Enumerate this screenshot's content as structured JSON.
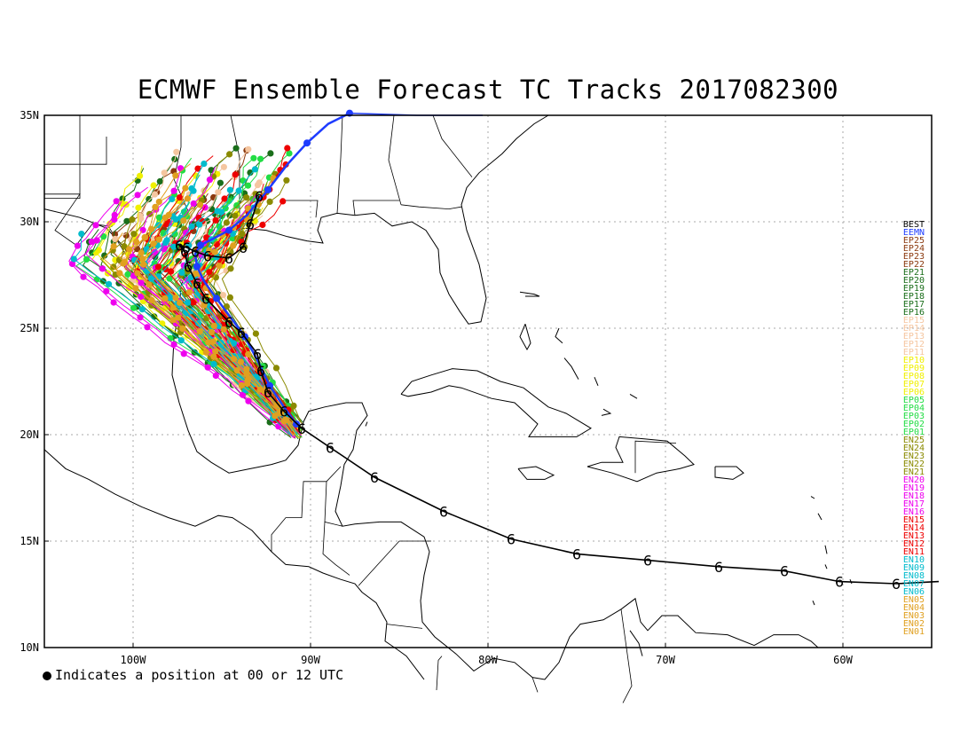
{
  "title": "ECMWF Ensemble Forecast TC Tracks 2017082300",
  "footnote": "Indicates a position at 00 or 12 UTC",
  "map": {
    "lon_range": [
      -105,
      -55
    ],
    "lat_range": [
      10,
      35
    ],
    "x_ticks": [
      {
        "lon": -100,
        "label": "100W"
      },
      {
        "lon": -90,
        "label": "90W"
      },
      {
        "lon": -80,
        "label": "80W"
      },
      {
        "lon": -70,
        "label": "70W"
      },
      {
        "lon": -60,
        "label": "60W"
      }
    ],
    "y_ticks": [
      {
        "lat": 35,
        "label": "35N"
      },
      {
        "lat": 30,
        "label": "30N"
      },
      {
        "lat": 25,
        "label": "25N"
      },
      {
        "lat": 20,
        "label": "20N"
      },
      {
        "lat": 15,
        "label": "15N"
      },
      {
        "lat": 10,
        "label": "10N"
      }
    ],
    "grid": true
  },
  "legend": [
    {
      "label": "BEST",
      "color": "#000000"
    },
    {
      "label": "EEMN",
      "color": "#1e3cff"
    },
    {
      "label": "EP25",
      "color": "#8b3a0f"
    },
    {
      "label": "EP24",
      "color": "#8b3a0f"
    },
    {
      "label": "EP23",
      "color": "#8b3a0f"
    },
    {
      "label": "EP22",
      "color": "#8b3a0f"
    },
    {
      "label": "EP21",
      "color": "#1a6e1a"
    },
    {
      "label": "EP20",
      "color": "#1a6e1a"
    },
    {
      "label": "EP19",
      "color": "#1a6e1a"
    },
    {
      "label": "EP18",
      "color": "#1a6e1a"
    },
    {
      "label": "EP17",
      "color": "#1a6e1a"
    },
    {
      "label": "EP16",
      "color": "#1a6e1a"
    },
    {
      "label": "EP15",
      "color": "#f5c6a0"
    },
    {
      "label": "EP14",
      "color": "#f5c6a0"
    },
    {
      "label": "EP13",
      "color": "#f5c6a0"
    },
    {
      "label": "EP12",
      "color": "#f5c6a0"
    },
    {
      "label": "EP11",
      "color": "#f5c6a0"
    },
    {
      "label": "EP10",
      "color": "#f0f000"
    },
    {
      "label": "EP09",
      "color": "#f0f000"
    },
    {
      "label": "EP08",
      "color": "#f0f000"
    },
    {
      "label": "EP07",
      "color": "#f0f000"
    },
    {
      "label": "EP06",
      "color": "#f0f000"
    },
    {
      "label": "EP05",
      "color": "#22dd44"
    },
    {
      "label": "EP04",
      "color": "#22dd44"
    },
    {
      "label": "EP03",
      "color": "#22dd44"
    },
    {
      "label": "EP02",
      "color": "#22dd44"
    },
    {
      "label": "EP01",
      "color": "#22dd44"
    },
    {
      "label": "EN25",
      "color": "#8a8a00"
    },
    {
      "label": "EN24",
      "color": "#8a8a00"
    },
    {
      "label": "EN23",
      "color": "#8a8a00"
    },
    {
      "label": "EN22",
      "color": "#8a8a00"
    },
    {
      "label": "EN21",
      "color": "#8a8a00"
    },
    {
      "label": "EN20",
      "color": "#ee00ee"
    },
    {
      "label": "EN19",
      "color": "#ee00ee"
    },
    {
      "label": "EN18",
      "color": "#ee00ee"
    },
    {
      "label": "EN17",
      "color": "#ee00ee"
    },
    {
      "label": "EN16",
      "color": "#ee00ee"
    },
    {
      "label": "EN15",
      "color": "#ee0000"
    },
    {
      "label": "EN14",
      "color": "#ee0000"
    },
    {
      "label": "EN13",
      "color": "#ee0000"
    },
    {
      "label": "EN12",
      "color": "#ee0000"
    },
    {
      "label": "EN11",
      "color": "#ee0000"
    },
    {
      "label": "EN10",
      "color": "#00bbcc"
    },
    {
      "label": "EN09",
      "color": "#00bbcc"
    },
    {
      "label": "EN08",
      "color": "#00bbcc"
    },
    {
      "label": "EN07",
      "color": "#00bbcc"
    },
    {
      "label": "EN06",
      "color": "#00bbcc"
    },
    {
      "label": "EN05",
      "color": "#e0a020"
    },
    {
      "label": "EN04",
      "color": "#e0a020"
    },
    {
      "label": "EN03",
      "color": "#e0a020"
    },
    {
      "label": "EN02",
      "color": "#e0a020"
    },
    {
      "label": "EN01",
      "color": "#e0a020"
    }
  ],
  "best_track": [
    [
      -54.6,
      13.1
    ],
    [
      -57.0,
      13.0
    ],
    [
      -60.2,
      13.1
    ],
    [
      -63.3,
      13.6
    ],
    [
      -67.0,
      13.8
    ],
    [
      -71.0,
      14.1
    ],
    [
      -75.0,
      14.4
    ],
    [
      -78.7,
      15.1
    ],
    [
      -82.5,
      16.4
    ],
    [
      -86.4,
      18.0
    ],
    [
      -88.9,
      19.4
    ],
    [
      -90.5,
      20.3
    ],
    [
      -91.5,
      21.1
    ],
    [
      -92.4,
      22.0
    ],
    [
      -92.8,
      23.0
    ],
    [
      -93.0,
      23.8
    ],
    [
      -93.9,
      24.8
    ],
    [
      -94.6,
      25.3
    ],
    [
      -95.9,
      26.4
    ],
    [
      -96.4,
      27.1
    ],
    [
      -96.9,
      27.9
    ],
    [
      -97.1,
      28.6
    ],
    [
      -97.4,
      28.9
    ],
    [
      -97.0,
      28.8
    ],
    [
      -96.5,
      28.6
    ],
    [
      -95.8,
      28.4
    ],
    [
      -94.6,
      28.3
    ],
    [
      -93.8,
      28.8
    ],
    [
      -93.4,
      29.9
    ],
    [
      -92.9,
      31.2
    ]
  ],
  "mean_track": [
    [
      -90.8,
      20.5
    ],
    [
      -91.5,
      21.3
    ],
    [
      -92.3,
      22.3
    ],
    [
      -93.0,
      23.5
    ],
    [
      -93.7,
      24.6
    ],
    [
      -94.5,
      25.5
    ],
    [
      -95.3,
      26.4
    ],
    [
      -96.0,
      27.2
    ],
    [
      -96.4,
      27.9
    ],
    [
      -96.5,
      28.5
    ],
    [
      -96.2,
      28.9
    ],
    [
      -95.5,
      29.2
    ],
    [
      -94.6,
      29.6
    ],
    [
      -93.6,
      30.3
    ],
    [
      -92.4,
      31.5
    ],
    [
      -91.3,
      32.7
    ],
    [
      -90.2,
      33.7
    ],
    [
      -89.0,
      34.6
    ],
    [
      -87.8,
      35.1
    ]
  ]
}
